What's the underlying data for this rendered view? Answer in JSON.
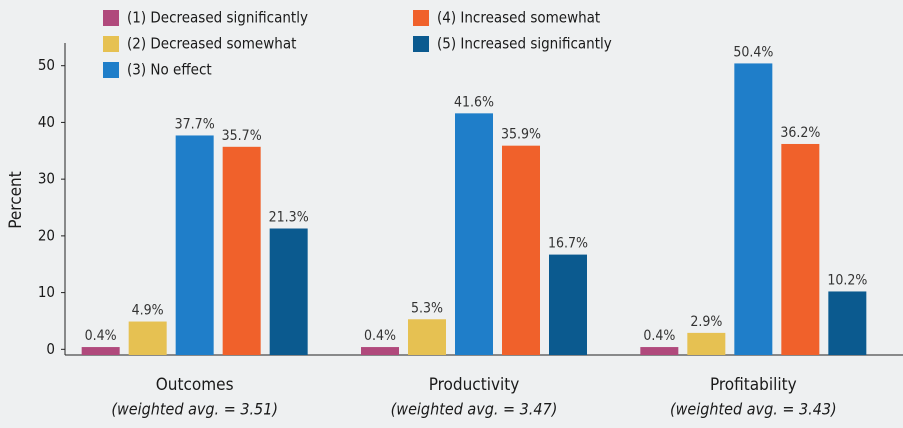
{
  "chart_data": {
    "type": "bar",
    "y_label": "Percent",
    "categories": [
      "Outcomes",
      "Productivity",
      "Profitability"
    ],
    "category_notes": [
      "(weighted avg. = 3.51)",
      "(weighted avg. = 3.47)",
      "(weighted avg. = 3.43)"
    ],
    "series": [
      {
        "name": "(1) Decreased significantly",
        "color": "#b0497c",
        "values": [
          0.4,
          0.4,
          0.4
        ],
        "value_labels": [
          "0.4%",
          "0.4%",
          "0.4%"
        ]
      },
      {
        "name": "(2) Decreased somewhat",
        "color": "#e6c152",
        "values": [
          4.9,
          5.3,
          2.9
        ],
        "value_labels": [
          "4.9%",
          "5.3%",
          "2.9%"
        ]
      },
      {
        "name": "(3) No effect",
        "color": "#1f7ec9",
        "values": [
          37.7,
          41.6,
          50.4
        ],
        "value_labels": [
          "37.7%",
          "41.6%",
          "50.4%"
        ]
      },
      {
        "name": "(4) Increased somewhat",
        "color": "#f0612b",
        "values": [
          35.7,
          35.9,
          36.2
        ],
        "value_labels": [
          "35.7%",
          "35.9%",
          "36.2%"
        ]
      },
      {
        "name": "(5) Increased significantly",
        "color": "#0b5a8f",
        "values": [
          21.3,
          16.7,
          10.2
        ],
        "value_labels": [
          "21.3%",
          "16.7%",
          "10.2%"
        ]
      }
    ],
    "ylim": [
      -1,
      54
    ],
    "yticks": [
      0,
      10,
      20,
      30,
      40,
      50
    ],
    "grid": false
  }
}
